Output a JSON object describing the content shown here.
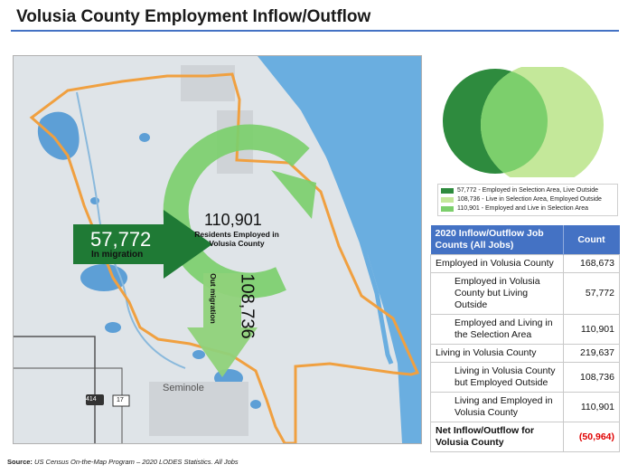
{
  "title": "Volusia County Employment Inflow/Outflow",
  "map": {
    "inflow_value": "57,772",
    "inflow_label": "In migration",
    "resident_value": "110,901",
    "resident_label": "Residents Employed in Volusia County",
    "outflow_value": "108,736",
    "outflow_label": "Out migration",
    "city_label": "Seminole",
    "road_labels": [
      "414",
      "17"
    ],
    "colors": {
      "water": "#6aaee0",
      "land": "#dde3e7",
      "county_border": "#f0a040",
      "dark_green": "#2e8b3e",
      "light_green": "#8fd27a"
    }
  },
  "legend": {
    "items": [
      {
        "label": "57,772 - Employed in Selection Area, Live Outside",
        "color": "#2e8b3e"
      },
      {
        "label": "108,736 - Live in Selection Area, Employed Outside",
        "color": "#c4e89a"
      },
      {
        "label": "110,901 - Employed and Live in Selection Area",
        "color": "#7ccf6c"
      }
    ]
  },
  "table": {
    "header_label": "2020 Inflow/Outflow Job Counts (All Jobs)",
    "header_count": "Count",
    "rows": [
      {
        "label": "Employed in Volusia County",
        "value": "168,673"
      },
      {
        "label": "Employed in Volusia County but Living Outside",
        "value": "57,772"
      },
      {
        "label": "Employed and Living in the Selection Area",
        "value": "110,901"
      },
      {
        "label": "Living in Volusia County",
        "value": "219,637"
      },
      {
        "label": "Living in Volusia County but Employed Outside",
        "value": "108,736"
      },
      {
        "label": "Living and Employed in Volusia County",
        "value": "110,901"
      },
      {
        "label": "Net Inflow/Outflow for Volusia County",
        "value": "(50,964)"
      }
    ]
  },
  "source": {
    "prefix": "Source:",
    "text": "US Census On-the-Map Program – 2020 LODES Statistics. All Jobs"
  }
}
